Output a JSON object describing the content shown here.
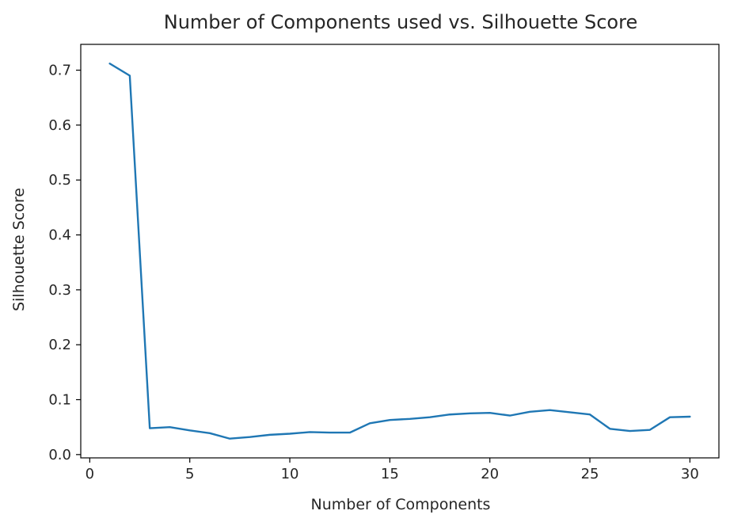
{
  "chart_data": {
    "type": "line",
    "title": "Number of Components used vs. Silhouette Score",
    "xlabel": "Number of Components",
    "ylabel": "Silhouette Score",
    "xlim": [
      -0.45,
      31.45
    ],
    "ylim": [
      -0.006,
      0.747
    ],
    "xticks": [
      0,
      5,
      10,
      15,
      20,
      25,
      30
    ],
    "yticks": [
      0.0,
      0.1,
      0.2,
      0.3,
      0.4,
      0.5,
      0.6,
      0.7
    ],
    "xtick_labels": [
      "0",
      "5",
      "10",
      "15",
      "20",
      "25",
      "30"
    ],
    "ytick_labels": [
      "0.0",
      "0.1",
      "0.2",
      "0.3",
      "0.4",
      "0.5",
      "0.6",
      "0.7"
    ],
    "grid": false,
    "legend": "none",
    "series": [
      {
        "color": "#1f77b4",
        "x": [
          1,
          2,
          3,
          4,
          5,
          6,
          7,
          8,
          9,
          10,
          11,
          12,
          13,
          14,
          15,
          16,
          17,
          18,
          19,
          20,
          21,
          22,
          23,
          24,
          25,
          26,
          27,
          28,
          29,
          30
        ],
        "y": [
          0.712,
          0.69,
          0.048,
          0.05,
          0.044,
          0.039,
          0.029,
          0.032,
          0.036,
          0.038,
          0.041,
          0.04,
          0.04,
          0.057,
          0.063,
          0.065,
          0.068,
          0.073,
          0.075,
          0.076,
          0.071,
          0.078,
          0.081,
          0.077,
          0.073,
          0.047,
          0.043,
          0.045,
          0.068,
          0.069
        ]
      }
    ]
  }
}
